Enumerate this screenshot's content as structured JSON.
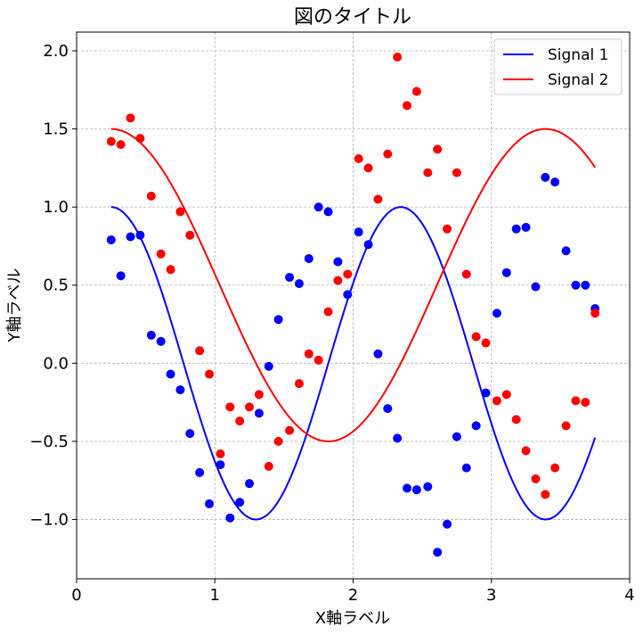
{
  "chart_data": {
    "type": "line",
    "title": "図のタイトル",
    "xlabel": "X軸ラベル",
    "ylabel": "Y軸ラベル",
    "xlim": [
      0,
      4
    ],
    "ylim": [
      -1.38,
      2.12
    ],
    "xticks": [
      0,
      1,
      2,
      3,
      4
    ],
    "xtick_labels": [
      "0",
      "1",
      "2",
      "3",
      "4"
    ],
    "yticks": [
      -1.0,
      -0.5,
      0.0,
      0.5,
      1.0,
      1.5,
      2.0
    ],
    "ytick_labels": [
      "−1.0",
      "−0.5",
      "0.0",
      "0.5",
      "1.0",
      "1.5",
      "2.0"
    ],
    "grid": true,
    "legend": {
      "position": "top-right",
      "entries": [
        {
          "name": "Signal 1",
          "color": "#0000ff"
        },
        {
          "name": "Signal 2",
          "color": "#ff0000"
        }
      ]
    },
    "series": [
      {
        "name": "Signal 1",
        "kind": "line",
        "color": "#0000ff",
        "function": "cos(3*(x-0.25))",
        "x_range": [
          0.25,
          3.75
        ]
      },
      {
        "name": "Signal 2",
        "kind": "line",
        "color": "#ff0000",
        "function": "0.5 + cos(3*(x-0.25)/1.5)",
        "x_range": [
          0.25,
          3.75
        ]
      },
      {
        "kind": "scatter",
        "color": "#0000ff",
        "points": [
          [
            0.25,
            0.79
          ],
          [
            0.32,
            0.56
          ],
          [
            0.39,
            0.81
          ],
          [
            0.46,
            0.82
          ],
          [
            0.54,
            0.18
          ],
          [
            0.61,
            0.14
          ],
          [
            0.68,
            -0.07
          ],
          [
            0.75,
            -0.17
          ],
          [
            0.82,
            -0.45
          ],
          [
            0.89,
            -0.7
          ],
          [
            0.96,
            -0.9
          ],
          [
            1.04,
            -0.65
          ],
          [
            1.11,
            -0.99
          ],
          [
            1.18,
            -0.89
          ],
          [
            1.25,
            -0.77
          ],
          [
            1.32,
            -0.32
          ],
          [
            1.39,
            -0.02
          ],
          [
            1.46,
            0.28
          ],
          [
            1.54,
            0.55
          ],
          [
            1.61,
            0.51
          ],
          [
            1.68,
            0.67
          ],
          [
            1.75,
            1.0
          ],
          [
            1.82,
            0.97
          ],
          [
            1.89,
            0.65
          ],
          [
            1.96,
            0.44
          ],
          [
            2.04,
            0.84
          ],
          [
            2.11,
            0.76
          ],
          [
            2.18,
            0.06
          ],
          [
            2.25,
            -0.29
          ],
          [
            2.32,
            -0.48
          ],
          [
            2.39,
            -0.8
          ],
          [
            2.46,
            -0.81
          ],
          [
            2.54,
            -0.79
          ],
          [
            2.61,
            -1.21
          ],
          [
            2.68,
            -1.03
          ],
          [
            2.75,
            -0.47
          ],
          [
            2.82,
            -0.67
          ],
          [
            2.89,
            -0.4
          ],
          [
            2.96,
            -0.19
          ],
          [
            3.04,
            0.32
          ],
          [
            3.11,
            0.58
          ],
          [
            3.18,
            0.86
          ],
          [
            3.25,
            0.87
          ],
          [
            3.32,
            0.49
          ],
          [
            3.39,
            1.19
          ],
          [
            3.46,
            1.16
          ],
          [
            3.54,
            0.72
          ],
          [
            3.61,
            0.5
          ],
          [
            3.68,
            0.5
          ],
          [
            3.75,
            0.35
          ]
        ]
      },
      {
        "kind": "scatter",
        "color": "#ff0000",
        "points": [
          [
            0.25,
            1.42
          ],
          [
            0.32,
            1.4
          ],
          [
            0.39,
            1.57
          ],
          [
            0.46,
            1.44
          ],
          [
            0.54,
            1.07
          ],
          [
            0.61,
            0.7
          ],
          [
            0.68,
            0.6
          ],
          [
            0.75,
            0.97
          ],
          [
            0.82,
            0.82
          ],
          [
            0.89,
            0.08
          ],
          [
            0.96,
            -0.07
          ],
          [
            1.04,
            -0.58
          ],
          [
            1.11,
            -0.28
          ],
          [
            1.18,
            -0.37
          ],
          [
            1.25,
            -0.28
          ],
          [
            1.32,
            -0.2
          ],
          [
            1.39,
            -0.66
          ],
          [
            1.46,
            -0.5
          ],
          [
            1.54,
            -0.43
          ],
          [
            1.61,
            -0.13
          ],
          [
            1.68,
            0.06
          ],
          [
            1.75,
            0.02
          ],
          [
            1.82,
            0.33
          ],
          [
            1.89,
            0.53
          ],
          [
            1.96,
            0.57
          ],
          [
            2.04,
            1.31
          ],
          [
            2.11,
            1.25
          ],
          [
            2.18,
            1.05
          ],
          [
            2.25,
            1.34
          ],
          [
            2.32,
            1.96
          ],
          [
            2.39,
            1.65
          ],
          [
            2.46,
            1.74
          ],
          [
            2.54,
            1.22
          ],
          [
            2.61,
            1.37
          ],
          [
            2.68,
            0.86
          ],
          [
            2.75,
            1.22
          ],
          [
            2.82,
            0.57
          ],
          [
            2.89,
            0.17
          ],
          [
            2.96,
            0.13
          ],
          [
            3.04,
            -0.24
          ],
          [
            3.11,
            -0.2
          ],
          [
            3.18,
            -0.36
          ],
          [
            3.25,
            -0.56
          ],
          [
            3.32,
            -0.74
          ],
          [
            3.39,
            -0.84
          ],
          [
            3.46,
            -0.67
          ],
          [
            3.54,
            -0.4
          ],
          [
            3.61,
            -0.24
          ],
          [
            3.68,
            -0.25
          ],
          [
            3.75,
            0.32
          ]
        ]
      }
    ]
  }
}
